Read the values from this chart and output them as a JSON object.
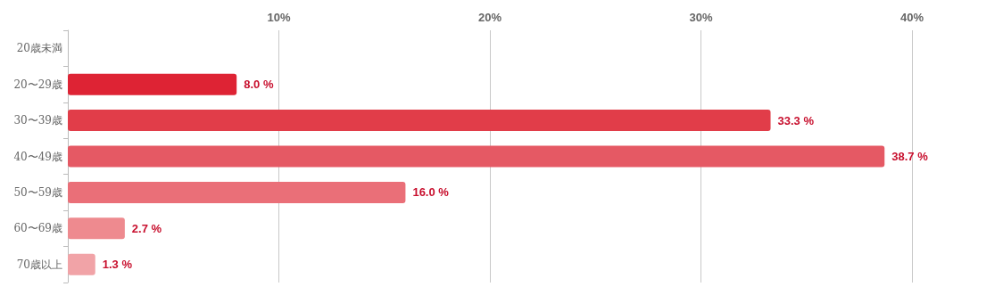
{
  "chart_data": {
    "type": "bar",
    "orientation": "horizontal",
    "categories": [
      "20歳未満",
      "20〜29歳",
      "30〜39歳",
      "40〜49歳",
      "50〜59歳",
      "60〜69歳",
      "70歳以上"
    ],
    "values": [
      0,
      8.0,
      33.3,
      38.7,
      16.0,
      2.7,
      1.3
    ],
    "value_labels": [
      null,
      "8.0 %",
      "33.3 %",
      "38.7 %",
      "16.0 %",
      "2.7 %",
      "1.3 %"
    ],
    "colors": [
      "#dc1f30",
      "#de2334",
      "#e13d49",
      "#e55964",
      "#ea6f78",
      "#ee8a8f",
      "#f1a3a7"
    ],
    "xlim": [
      0,
      40
    ],
    "xticks": [
      {
        "value": 0,
        "label": null
      },
      {
        "value": 10,
        "label": "10%"
      },
      {
        "value": 20,
        "label": "20%"
      },
      {
        "value": 30,
        "label": "30%"
      },
      {
        "value": 40,
        "label": "40%"
      }
    ],
    "grid": "x"
  }
}
